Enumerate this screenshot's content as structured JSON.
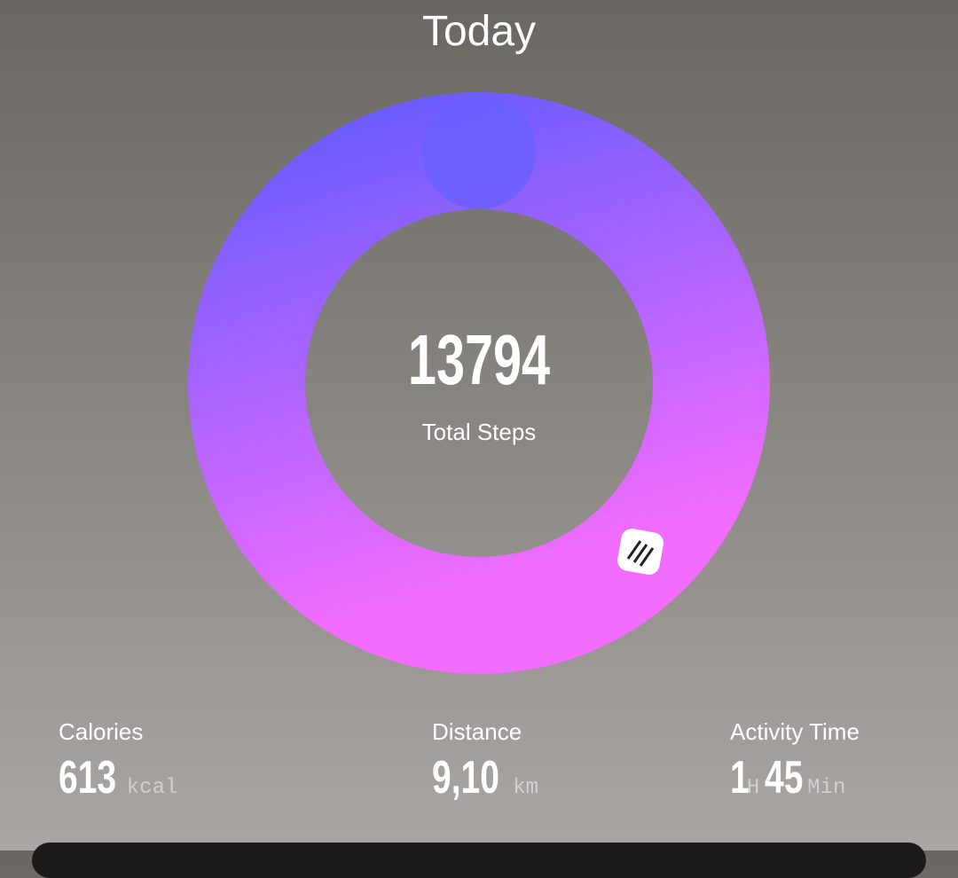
{
  "header": {
    "title": "Today"
  },
  "steps": {
    "value": "13794",
    "label": "Total Steps"
  },
  "stats": [
    {
      "label": "Calories",
      "parts": [
        {
          "text": "613",
          "kind": "number"
        },
        {
          "text": "kcal",
          "kind": "unit"
        }
      ]
    },
    {
      "label": "Distance",
      "parts": [
        {
          "text": "9,10",
          "kind": "number"
        },
        {
          "text": "km",
          "kind": "unit"
        }
      ]
    },
    {
      "label": "Activity Time",
      "parts": [
        {
          "text": "1",
          "kind": "number"
        },
        {
          "text": "H",
          "kind": "unit"
        },
        {
          "text": "45",
          "kind": "number"
        },
        {
          "text": "Min",
          "kind": "unit"
        }
      ]
    }
  ]
}
